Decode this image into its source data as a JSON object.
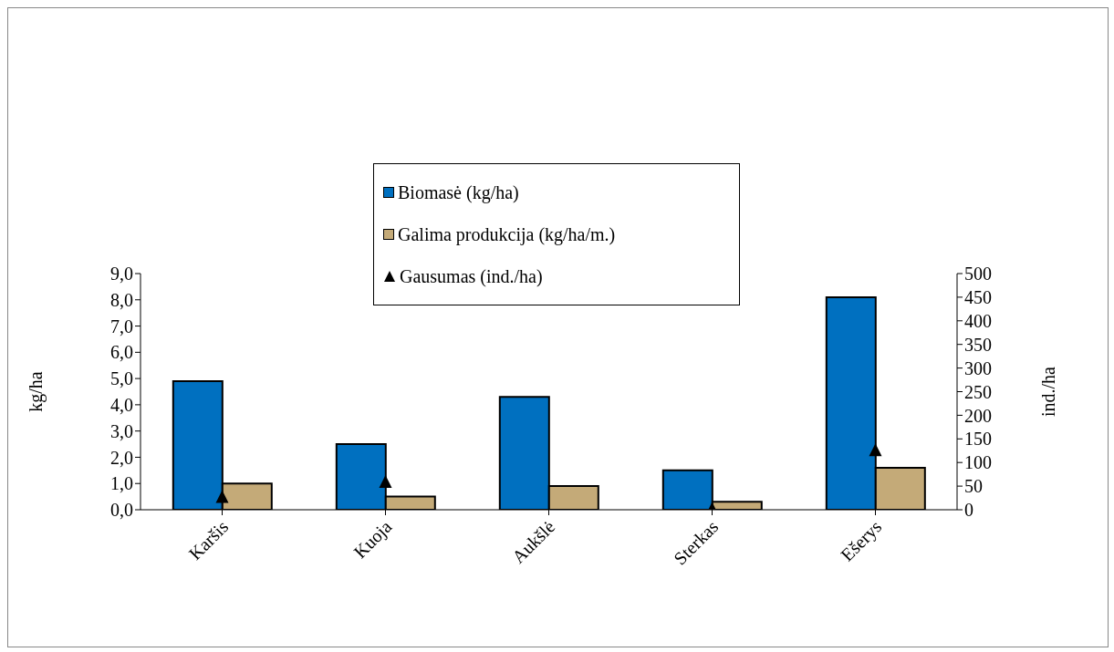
{
  "chart_data": {
    "type": "bar",
    "categories": [
      "Karšis",
      "Kuoja",
      "Aukšlė",
      "Sterkas",
      "Ešerys"
    ],
    "ylabel": "kg/ha",
    "y2label": "ind./ha",
    "ylim": [
      0,
      9
    ],
    "yticks": [
      {
        "value": 0,
        "label": "0,0"
      },
      {
        "value": 1,
        "label": "1,0"
      },
      {
        "value": 2,
        "label": "2,0"
      },
      {
        "value": 3,
        "label": "3,0"
      },
      {
        "value": 4,
        "label": "4,0"
      },
      {
        "value": 5,
        "label": "5,0"
      },
      {
        "value": 6,
        "label": "6,0"
      },
      {
        "value": 7,
        "label": "7,0"
      },
      {
        "value": 8,
        "label": "8,0"
      },
      {
        "value": 9,
        "label": "9,0"
      }
    ],
    "y2lim": [
      0,
      500
    ],
    "y2ticks": [
      0,
      50,
      100,
      150,
      200,
      250,
      300,
      350,
      400,
      450,
      500
    ],
    "legend": "top",
    "grid": false,
    "series": [
      {
        "name": "Biomasė (kg/ha)",
        "color": "#0070c0",
        "values": [
          4.9,
          2.5,
          4.3,
          1.5,
          8.1
        ]
      },
      {
        "name": "Galima produkcija (kg/ha/m.)",
        "color": "#c4aa78",
        "values": [
          1.0,
          0.5,
          0.9,
          0.3,
          1.6
        ]
      },
      {
        "name": "Gausumas (ind./ha)",
        "type": "scatter",
        "axis": "y2",
        "marker": "triangle",
        "color": "#000000",
        "values": [
          26,
          58,
          null,
          1,
          125
        ]
      }
    ]
  }
}
